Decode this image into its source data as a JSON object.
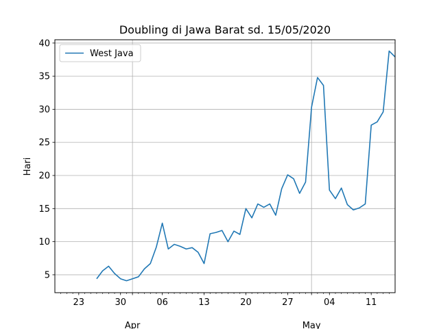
{
  "chart_data": {
    "type": "line",
    "title": "Doubling di Jawa Barat sd. 15/05/2020",
    "xlabel": "",
    "ylabel": "Hari",
    "xlim": [
      "2020-03-19",
      "2020-05-15"
    ],
    "ylim": [
      2.3,
      40.5
    ],
    "grid": true,
    "legend": "top-left",
    "x_ticks": [
      {
        "date": "2020-03-23",
        "label": "23"
      },
      {
        "date": "2020-03-30",
        "label": "30"
      },
      {
        "date": "2020-04-06",
        "label": "06"
      },
      {
        "date": "2020-04-13",
        "label": "13"
      },
      {
        "date": "2020-04-20",
        "label": "20"
      },
      {
        "date": "2020-04-27",
        "label": "27"
      },
      {
        "date": "2020-05-04",
        "label": "04"
      },
      {
        "date": "2020-05-11",
        "label": "11"
      }
    ],
    "x_major_labels": [
      {
        "date": "2020-04-01",
        "label": "Apr"
      },
      {
        "date": "2020-05-01",
        "label": "May"
      }
    ],
    "y_ticks": [
      5,
      10,
      15,
      20,
      25,
      30,
      35,
      40
    ],
    "series": [
      {
        "name": "West Java",
        "color": "#1f77b4",
        "points": [
          [
            "2020-03-26",
            4.4
          ],
          [
            "2020-03-27",
            5.6
          ],
          [
            "2020-03-28",
            6.3
          ],
          [
            "2020-03-29",
            5.2
          ],
          [
            "2020-03-30",
            4.4
          ],
          [
            "2020-03-31",
            4.1
          ],
          [
            "2020-04-01",
            4.4
          ],
          [
            "2020-04-02",
            4.7
          ],
          [
            "2020-04-03",
            5.9
          ],
          [
            "2020-04-04",
            6.7
          ],
          [
            "2020-04-05",
            9.2
          ],
          [
            "2020-04-06",
            12.8
          ],
          [
            "2020-04-07",
            8.9
          ],
          [
            "2020-04-08",
            9.6
          ],
          [
            "2020-04-09",
            9.3
          ],
          [
            "2020-04-10",
            8.9
          ],
          [
            "2020-04-11",
            9.1
          ],
          [
            "2020-04-12",
            8.4
          ],
          [
            "2020-04-13",
            6.7
          ],
          [
            "2020-04-14",
            11.2
          ],
          [
            "2020-04-15",
            11.4
          ],
          [
            "2020-04-16",
            11.7
          ],
          [
            "2020-04-17",
            10.0
          ],
          [
            "2020-04-18",
            11.6
          ],
          [
            "2020-04-19",
            11.1
          ],
          [
            "2020-04-20",
            15.0
          ],
          [
            "2020-04-21",
            13.6
          ],
          [
            "2020-04-22",
            15.7
          ],
          [
            "2020-04-23",
            15.2
          ],
          [
            "2020-04-24",
            15.7
          ],
          [
            "2020-04-25",
            14.0
          ],
          [
            "2020-04-26",
            18.0
          ],
          [
            "2020-04-27",
            20.1
          ],
          [
            "2020-04-28",
            19.5
          ],
          [
            "2020-04-29",
            17.3
          ],
          [
            "2020-04-30",
            19.0
          ],
          [
            "2020-05-01",
            30.3
          ],
          [
            "2020-05-02",
            34.8
          ],
          [
            "2020-05-03",
            33.6
          ],
          [
            "2020-05-04",
            17.8
          ],
          [
            "2020-05-05",
            16.5
          ],
          [
            "2020-05-06",
            18.1
          ],
          [
            "2020-05-07",
            15.6
          ],
          [
            "2020-05-08",
            14.8
          ],
          [
            "2020-05-09",
            15.1
          ],
          [
            "2020-05-10",
            15.7
          ],
          [
            "2020-05-11",
            27.6
          ],
          [
            "2020-05-12",
            28.1
          ],
          [
            "2020-05-13",
            29.6
          ],
          [
            "2020-05-14",
            38.8
          ],
          [
            "2020-05-15",
            37.9
          ]
        ]
      }
    ]
  }
}
